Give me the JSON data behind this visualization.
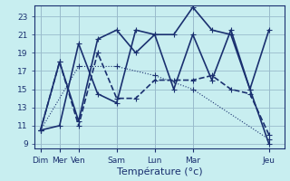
{
  "xlabel": "Température (°c)",
  "background_color": "#c8eef0",
  "grid_color": "#99bbcc",
  "line_color": "#1a3070",
  "ylim": [
    8.5,
    24.2
  ],
  "yticks": [
    9,
    11,
    13,
    15,
    17,
    19,
    21,
    23
  ],
  "x_ticks_major": [
    0,
    1,
    2,
    4,
    6,
    8,
    12
  ],
  "x_ticks_major_labels": [
    "Dim",
    "Mer",
    "Ven",
    "Sam",
    "Lun",
    "Mar",
    "Jeu"
  ],
  "xlim": [
    -0.3,
    12.8
  ],
  "series": [
    {
      "x": [
        0,
        2,
        4,
        6,
        8,
        12
      ],
      "y": [
        10.5,
        17.5,
        17.5,
        16.5,
        15.0,
        9.5
      ],
      "style": ":",
      "marker": "+",
      "markersize": 4,
      "linewidth": 0.8
    },
    {
      "x": [
        0,
        1,
        2,
        3,
        4,
        5,
        6,
        7,
        8,
        9,
        10,
        11,
        12
      ],
      "y": [
        10.5,
        18.0,
        11.5,
        20.5,
        21.5,
        19.0,
        21.0,
        15.0,
        21.0,
        16.0,
        21.5,
        15.0,
        21.5
      ],
      "style": "-",
      "marker": "+",
      "markersize": 4,
      "linewidth": 1.2
    },
    {
      "x": [
        0,
        1,
        2,
        3,
        4,
        5,
        6,
        7,
        8,
        9,
        10,
        11,
        12
      ],
      "y": [
        10.5,
        18.0,
        11.0,
        19.0,
        14.0,
        14.0,
        16.0,
        16.0,
        16.0,
        16.5,
        15.0,
        14.5,
        10.0
      ],
      "style": "--",
      "marker": "+",
      "markersize": 4,
      "linewidth": 1.2
    },
    {
      "x": [
        0,
        1,
        2,
        3,
        4,
        5,
        6,
        7,
        8,
        9,
        10,
        11,
        12
      ],
      "y": [
        10.5,
        11.0,
        20.0,
        14.5,
        13.5,
        21.5,
        21.0,
        21.0,
        24.0,
        21.5,
        21.0,
        15.0,
        9.0
      ],
      "style": "-",
      "marker": "+",
      "markersize": 4,
      "linewidth": 1.2
    }
  ]
}
